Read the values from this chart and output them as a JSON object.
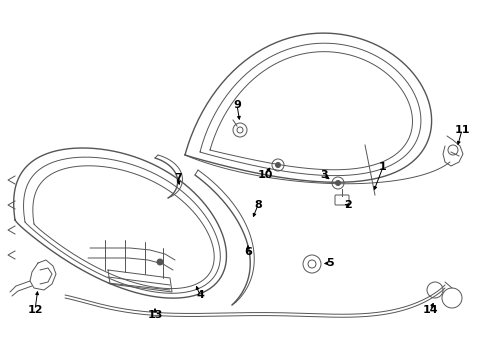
{
  "background_color": "#ffffff",
  "line_color": "#555555",
  "text_color": "#000000",
  "fig_width": 4.9,
  "fig_height": 3.6,
  "dpi": 100
}
